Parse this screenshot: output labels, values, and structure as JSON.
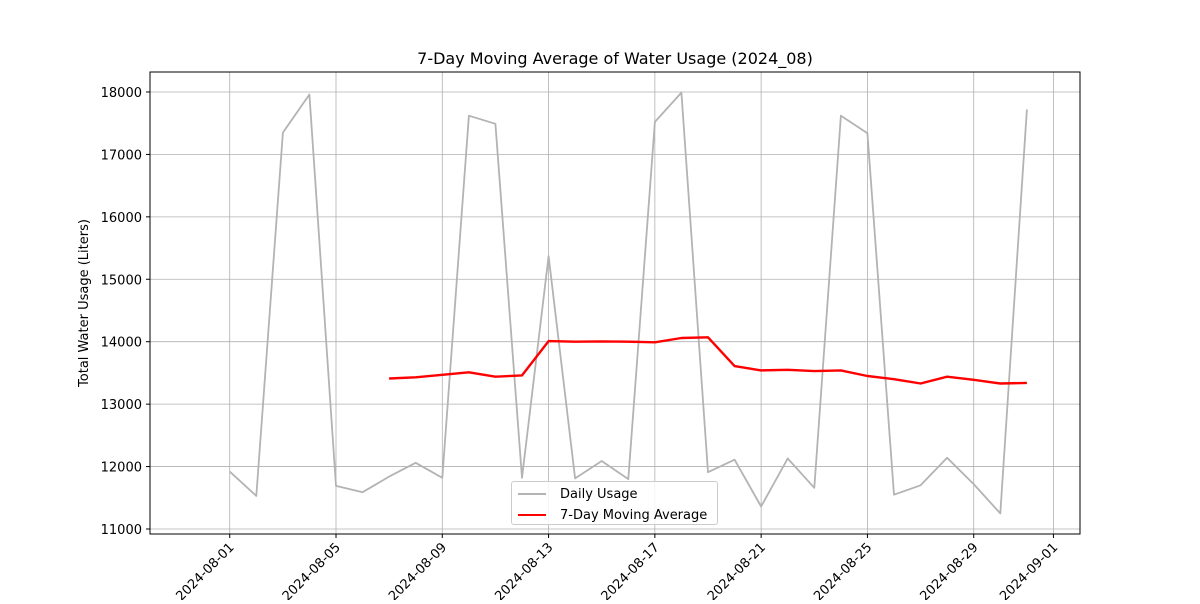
{
  "chart_data": {
    "type": "line",
    "title": "7-Day Moving Average of Water Usage (2024_08)",
    "xlabel": "",
    "ylabel": "Total Water Usage (Liters)",
    "ylim": [
      10920,
      18320
    ],
    "xlim": [
      "2024-07-29",
      "2024-09-02"
    ],
    "x_ticks": [
      "2024-08-01",
      "2024-08-05",
      "2024-08-09",
      "2024-08-13",
      "2024-08-17",
      "2024-08-21",
      "2024-08-25",
      "2024-08-29",
      "2024-09-01"
    ],
    "y_ticks": [
      11000,
      12000,
      13000,
      14000,
      15000,
      16000,
      17000,
      18000
    ],
    "grid": true,
    "legend_position": "bottom-center",
    "colors": {
      "daily": "#b3b3b3",
      "moving_average": "#ff0000"
    },
    "series": [
      {
        "name": "Daily Usage",
        "x": [
          "2024-08-01",
          "2024-08-02",
          "2024-08-03",
          "2024-08-04",
          "2024-08-05",
          "2024-08-06",
          "2024-08-07",
          "2024-08-08",
          "2024-08-09",
          "2024-08-10",
          "2024-08-11",
          "2024-08-12",
          "2024-08-13",
          "2024-08-14",
          "2024-08-15",
          "2024-08-16",
          "2024-08-17",
          "2024-08-18",
          "2024-08-19",
          "2024-08-20",
          "2024-08-21",
          "2024-08-22",
          "2024-08-23",
          "2024-08-24",
          "2024-08-25",
          "2024-08-26",
          "2024-08-27",
          "2024-08-28",
          "2024-08-29",
          "2024-08-30",
          "2024-08-31"
        ],
        "values": [
          11920,
          11530,
          17350,
          17960,
          11690,
          11590,
          11840,
          12060,
          11820,
          17620,
          17490,
          11820,
          15370,
          11810,
          12090,
          11800,
          17520,
          17990,
          11910,
          12110,
          11360,
          12130,
          11660,
          17620,
          17340,
          11550,
          11700,
          12140,
          11720,
          11250,
          17720
        ]
      },
      {
        "name": "7-Day Moving Average",
        "x": [
          "2024-08-07",
          "2024-08-08",
          "2024-08-09",
          "2024-08-10",
          "2024-08-11",
          "2024-08-12",
          "2024-08-13",
          "2024-08-14",
          "2024-08-15",
          "2024-08-16",
          "2024-08-17",
          "2024-08-18",
          "2024-08-19",
          "2024-08-20",
          "2024-08-21",
          "2024-08-22",
          "2024-08-23",
          "2024-08-24",
          "2024-08-25",
          "2024-08-26",
          "2024-08-27",
          "2024-08-28",
          "2024-08-29",
          "2024-08-30",
          "2024-08-31"
        ],
        "values": [
          13410,
          13430,
          13470,
          13510,
          13440,
          13460,
          14010,
          14000,
          14005,
          14000,
          13990,
          14060,
          14070,
          13610,
          13540,
          13550,
          13530,
          13540,
          13450,
          13400,
          13330,
          13440,
          13390,
          13330,
          13340
        ]
      }
    ]
  }
}
